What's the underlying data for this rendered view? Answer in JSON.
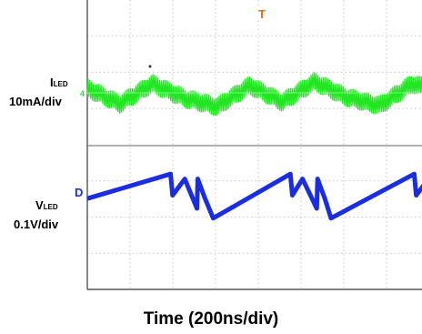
{
  "chart_data": {
    "type": "line",
    "xlabel": "Time (200ns/div)",
    "channels": [
      {
        "name_main": "I",
        "name_sub": "LED",
        "scale": "10mA/div",
        "marker": "4",
        "color": "#22e622",
        "description": "ripple",
        "x": [
          0.0,
          0.8,
          1.6,
          2.4,
          3.2,
          4.0,
          4.8,
          5.6,
          6.4,
          7.2,
          8.0,
          8.8
        ],
        "y": [
          0.05,
          -0.12,
          0.1,
          -0.06,
          -0.15,
          0.08,
          -0.1,
          0.12,
          -0.05,
          -0.14,
          0.1,
          0.0
        ]
      },
      {
        "name_main": "V",
        "name_sub": "LED",
        "scale": "0.1V/div",
        "marker": "D",
        "color": "#1a2ee0",
        "description": "sawtooth",
        "x": [
          0.0,
          2.05,
          2.1,
          2.4,
          2.7,
          2.72,
          2.9,
          3.1,
          5.0,
          5.05,
          5.3,
          5.65,
          5.67,
          5.85,
          6.0,
          8.05,
          8.1,
          8.4,
          8.7,
          8.72,
          8.9,
          9.1
        ],
        "y": [
          -0.2,
          0.55,
          -0.1,
          0.4,
          -0.5,
          0.4,
          -0.2,
          -0.8,
          0.55,
          -0.1,
          0.4,
          -0.5,
          0.4,
          -0.2,
          -0.8,
          0.55,
          -0.1,
          0.4,
          -0.5,
          0.4,
          -0.2,
          -0.8
        ]
      }
    ],
    "trigger_marker": "T",
    "grid": true
  }
}
